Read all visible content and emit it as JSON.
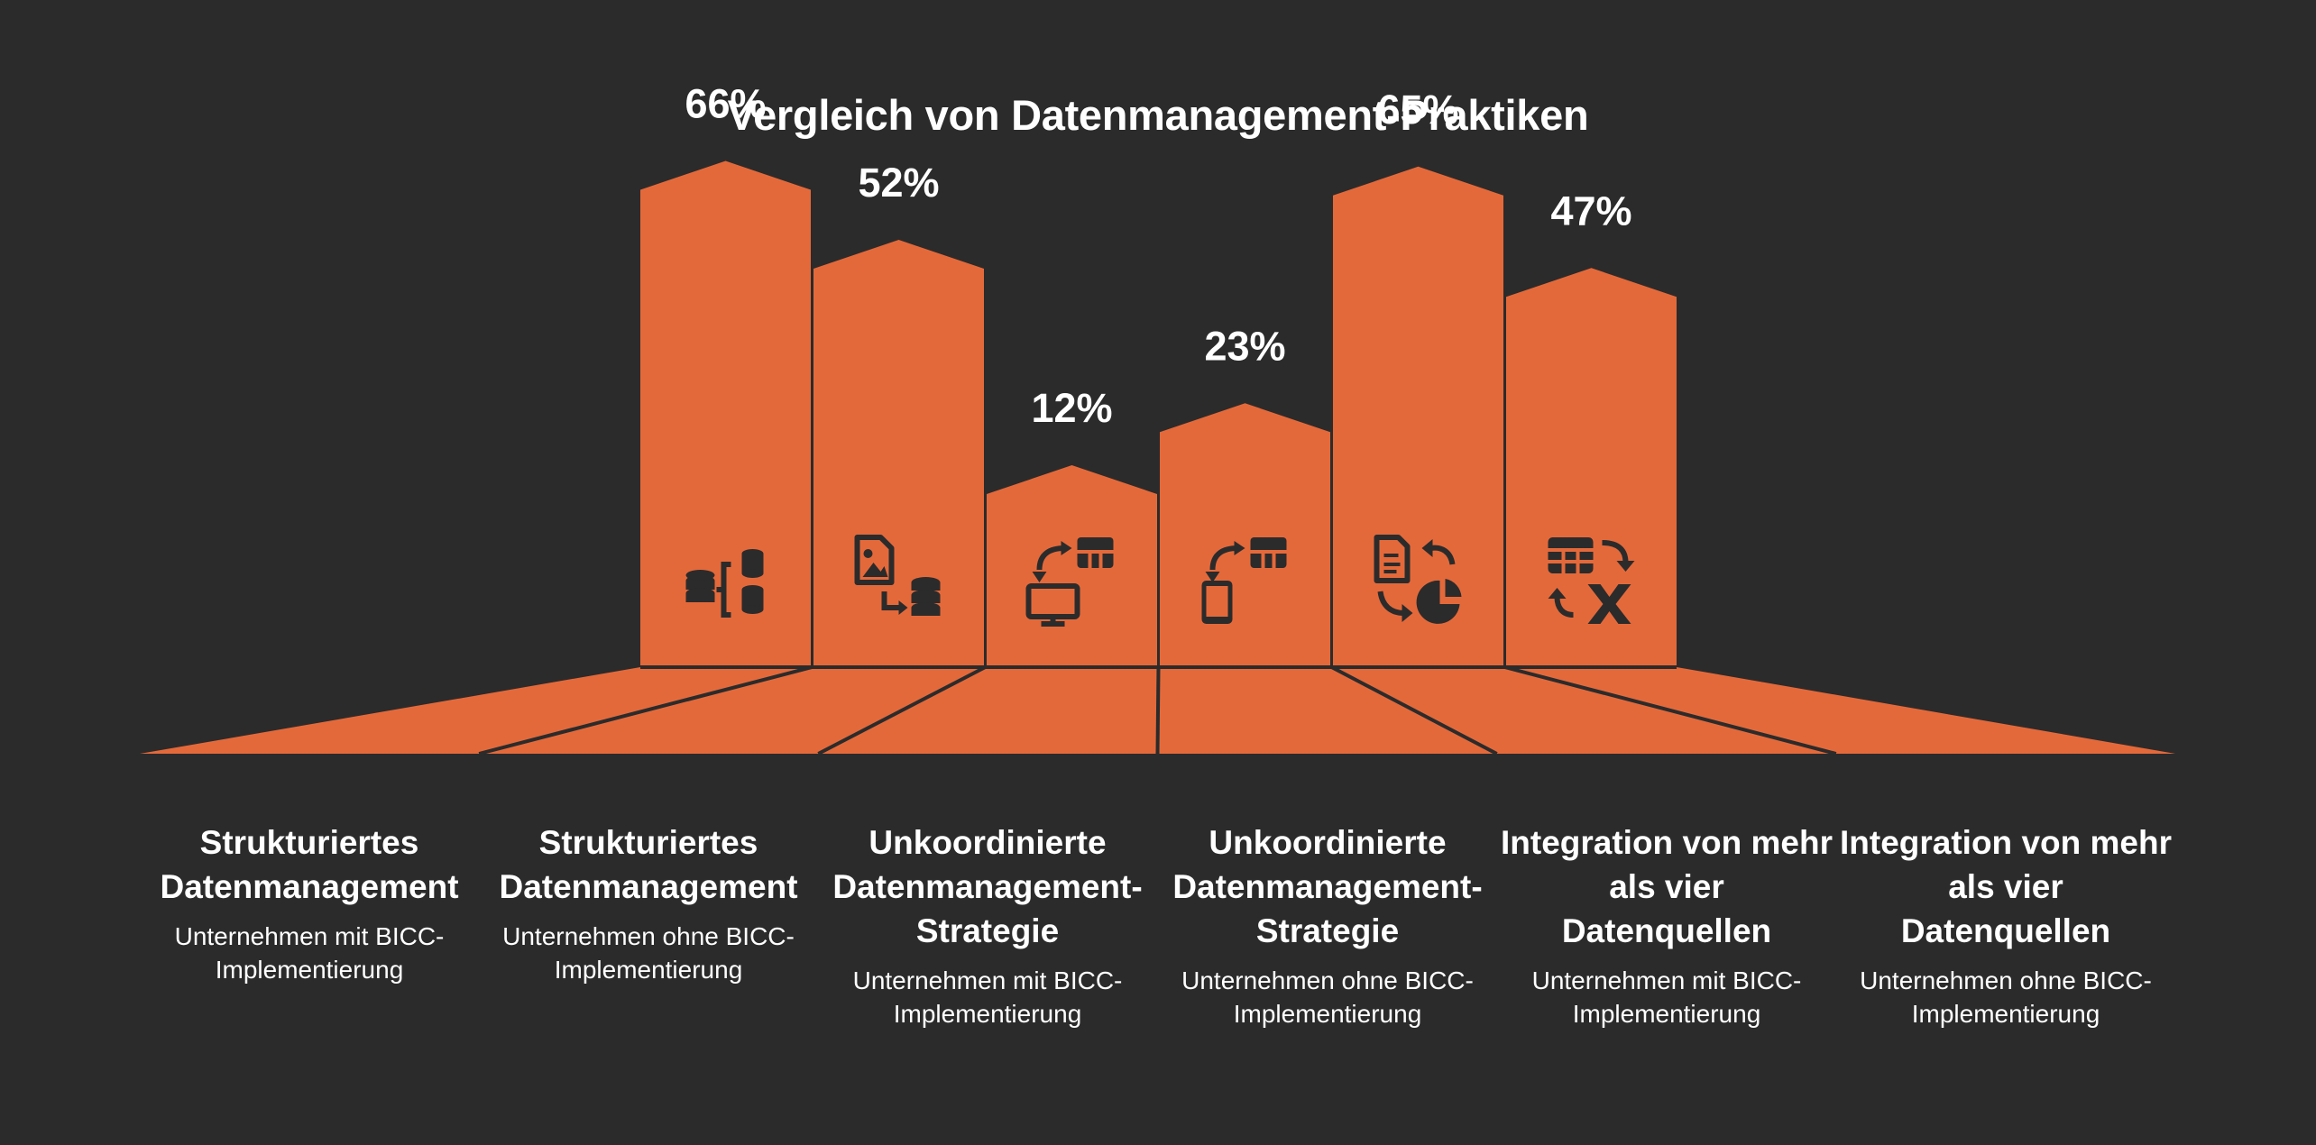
{
  "chart_data": {
    "type": "bar",
    "title": "Vergleich von Datenmanagement-Praktiken",
    "categories": [
      {
        "title": "Strukturiertes Datenmanagement",
        "subtitle": "Unternehmen mit BICC-Implementierung",
        "value": 66,
        "label": "66%",
        "icon": "database-tree-icon"
      },
      {
        "title": "Strukturiertes Datenmanagement",
        "subtitle": "Unternehmen ohne BICC-Implementierung",
        "value": 52,
        "label": "52%",
        "icon": "image-to-database-icon"
      },
      {
        "title": "Unkoordinierte Datenmanagement-Strategie",
        "subtitle": "Unternehmen mit BICC-Implementierung",
        "value": 12,
        "label": "12%",
        "icon": "monitor-table-sync-icon"
      },
      {
        "title": "Unkoordinierte Datenmanagement-Strategie",
        "subtitle": "Unternehmen ohne BICC-Implementierung",
        "value": 23,
        "label": "23%",
        "icon": "mobile-table-sync-icon"
      },
      {
        "title": "Integration von mehr als vier Datenquellen",
        "subtitle": "Unternehmen mit BICC-Implementierung",
        "value": 65,
        "label": "65%",
        "icon": "document-chart-sync-icon"
      },
      {
        "title": "Integration von mehr als vier Datenquellen",
        "subtitle": "Unternehmen ohne BICC-Implementierung",
        "value": 47,
        "label": "47%",
        "icon": "table-excel-sync-icon"
      }
    ],
    "ylim": [
      0,
      100
    ],
    "grid": false,
    "legend": "none"
  },
  "colors": {
    "background": "#2b2b2b",
    "bar": "#e4693a",
    "icon": "#2b2b2b",
    "text": "#ffffff"
  }
}
